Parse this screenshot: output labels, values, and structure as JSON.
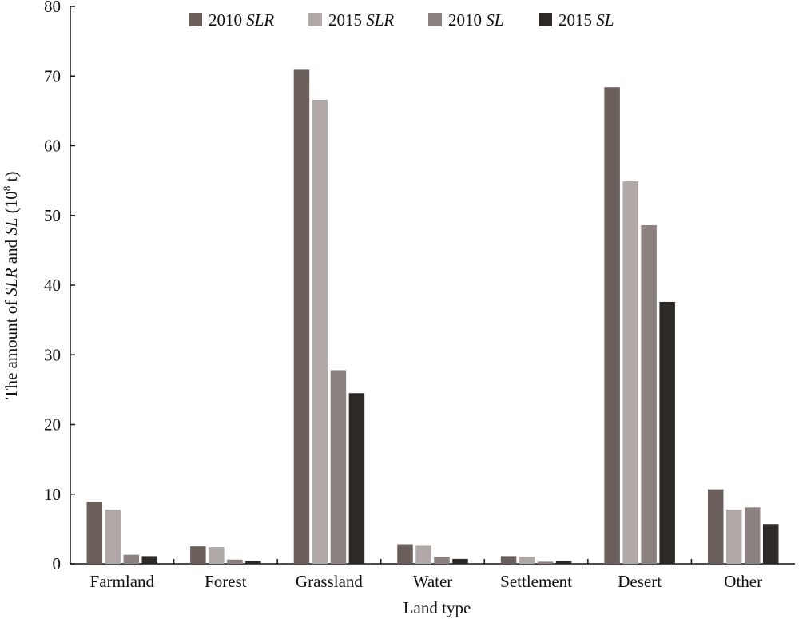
{
  "chart_data": {
    "type": "bar",
    "categories": [
      "Farmland",
      "Forest",
      "Grassland",
      "Water",
      "Settlement",
      "Desert",
      "Other"
    ],
    "series": [
      {
        "name": "2010 SLR",
        "name_year": "2010",
        "name_var": "SLR",
        "color": "#6b5f5c",
        "values": [
          8.9,
          2.5,
          70.9,
          2.8,
          1.1,
          68.4,
          10.7
        ]
      },
      {
        "name": "2015 SLR",
        "name_year": "2015",
        "name_var": "SLR",
        "color": "#b1a9a7",
        "values": [
          7.8,
          2.4,
          66.6,
          2.7,
          1.0,
          54.9,
          7.8
        ]
      },
      {
        "name": "2010 SL",
        "name_year": "2010",
        "name_var": "SL",
        "color": "#8b8280",
        "values": [
          1.3,
          0.6,
          27.8,
          1.0,
          0.3,
          48.6,
          8.1
        ]
      },
      {
        "name": "2015 SL",
        "name_year": "2015",
        "name_var": "SL",
        "color": "#2e2827",
        "values": [
          1.1,
          0.4,
          24.5,
          0.7,
          0.4,
          37.6,
          5.7
        ]
      }
    ],
    "xlabel": "Land type",
    "ylabel_parts": {
      "prefix": "The amount of ",
      "var1": "SLR",
      "mid": " and ",
      "var2": "SL",
      "unit_open": " (10",
      "unit_sup": "8",
      "unit_close": " t)"
    },
    "ylim": [
      0,
      80
    ],
    "yticks": [
      0,
      10,
      20,
      30,
      40,
      50,
      60,
      70,
      80
    ],
    "grid": false,
    "legend_position": "top"
  }
}
